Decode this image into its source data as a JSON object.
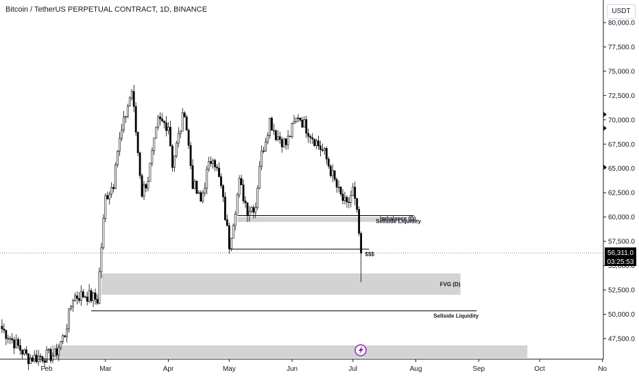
{
  "chart_title": "Bitcoin / TetherUS PERPETUAL CONTRACT, 1D, BINANCE",
  "unit_badge": "USDT",
  "colors": {
    "background": "#ffffff",
    "candle": "#000000",
    "zone": "#d3d3d3",
    "grid_text": "#131722",
    "price_tag": "#000000",
    "price_tag_text": "#ffffff"
  },
  "chart_data": {
    "type": "candlestick",
    "title": "Bitcoin / TetherUS PERPETUAL CONTRACT, 1D, BINANCE",
    "xlabel": "",
    "ylabel": "",
    "ylim": [
      45500,
      81500
    ],
    "y_ticks": [
      {
        "value": 47500,
        "label": "47,500.0"
      },
      {
        "value": 50000,
        "label": "50,000.0"
      },
      {
        "value": 52500,
        "label": "52,500.0"
      },
      {
        "value": 55000,
        "label": "55,000.0"
      },
      {
        "value": 57500,
        "label": "57,500.0"
      },
      {
        "value": 60000,
        "label": "60,000.0"
      },
      {
        "value": 62500,
        "label": "62,500.0"
      },
      {
        "value": 65000,
        "label": "65,000.0"
      },
      {
        "value": 67500,
        "label": "67,500.0"
      },
      {
        "value": 70000,
        "label": "70,000.0"
      },
      {
        "value": 72500,
        "label": "72,500.0"
      },
      {
        "value": 75000,
        "label": "75,000.0"
      },
      {
        "value": 77500,
        "label": "77,500.0"
      },
      {
        "value": 80000,
        "label": "80,000.0"
      }
    ],
    "x_ticks": [
      {
        "date": "2024-02-01",
        "label": "Feb"
      },
      {
        "date": "2024-03-01",
        "label": "Mar"
      },
      {
        "date": "2024-04-01",
        "label": "Apr"
      },
      {
        "date": "2024-05-01",
        "label": "May"
      },
      {
        "date": "2024-06-01",
        "label": "Jun"
      },
      {
        "date": "2024-07-01",
        "label": "Jul"
      },
      {
        "date": "2024-08-01",
        "label": "Aug"
      },
      {
        "date": "2024-09-01",
        "label": "Sep"
      },
      {
        "date": "2024-10-01",
        "label": "Oct"
      },
      {
        "date": "2024-11-01",
        "label": "No"
      }
    ],
    "current_price": {
      "value": 56311.0,
      "label": "56,311.0",
      "countdown": "03:25:53"
    },
    "ohlc_anchors": [
      {
        "date": "2024-01-10",
        "price": 48500
      },
      {
        "date": "2024-01-23",
        "price": 45500
      },
      {
        "date": "2024-02-05",
        "price": 45800
      },
      {
        "date": "2024-02-10",
        "price": 48000
      },
      {
        "date": "2024-02-14",
        "price": 51800
      },
      {
        "date": "2024-02-20",
        "price": 52000
      },
      {
        "date": "2024-02-26",
        "price": 51500
      },
      {
        "date": "2024-02-28",
        "price": 57000
      },
      {
        "date": "2024-03-01",
        "price": 62000
      },
      {
        "date": "2024-03-05",
        "price": 63500
      },
      {
        "date": "2024-03-06",
        "price": 66000
      },
      {
        "date": "2024-03-12",
        "price": 71500
      },
      {
        "date": "2024-03-14",
        "price": 73000
      },
      {
        "date": "2024-03-19",
        "price": 62500
      },
      {
        "date": "2024-03-22",
        "price": 64000
      },
      {
        "date": "2024-03-27",
        "price": 69800
      },
      {
        "date": "2024-04-01",
        "price": 69500
      },
      {
        "date": "2024-04-03",
        "price": 65500
      },
      {
        "date": "2024-04-09",
        "price": 71000
      },
      {
        "date": "2024-04-13",
        "price": 63500
      },
      {
        "date": "2024-04-17",
        "price": 61500
      },
      {
        "date": "2024-04-20",
        "price": 64500
      },
      {
        "date": "2024-04-23",
        "price": 66500
      },
      {
        "date": "2024-04-27",
        "price": 63000
      },
      {
        "date": "2024-05-01",
        "price": 57200
      },
      {
        "date": "2024-05-06",
        "price": 63500
      },
      {
        "date": "2024-05-10",
        "price": 60800
      },
      {
        "date": "2024-05-14",
        "price": 61200
      },
      {
        "date": "2024-05-16",
        "price": 65500
      },
      {
        "date": "2024-05-21",
        "price": 70000
      },
      {
        "date": "2024-05-24",
        "price": 68500
      },
      {
        "date": "2024-05-29",
        "price": 67500
      },
      {
        "date": "2024-06-04",
        "price": 70500
      },
      {
        "date": "2024-06-07",
        "price": 69500
      },
      {
        "date": "2024-06-12",
        "price": 68000
      },
      {
        "date": "2024-06-17",
        "price": 66500
      },
      {
        "date": "2024-06-24",
        "price": 62500
      },
      {
        "date": "2024-06-28",
        "price": 61000
      },
      {
        "date": "2024-07-01",
        "price": 62800
      },
      {
        "date": "2024-07-03",
        "price": 60200
      },
      {
        "date": "2024-07-05",
        "price": 56300
      }
    ],
    "zones": [
      {
        "label": "FVG (D)",
        "start": "2024-02-28",
        "end": "2024-08-23",
        "high": 54200,
        "low": 52000
      },
      {
        "label": "",
        "start": "2024-02-03",
        "end": "2024-09-25",
        "high": 46800,
        "low": 45500
      },
      {
        "label": "Imbalance (D)",
        "start": "2024-05-05",
        "end": "2024-07-31",
        "high": 60000,
        "low": 59500
      }
    ],
    "lines": [
      {
        "label": "Sellside Liquidity",
        "start": "2024-05-05",
        "end": "2024-07-31",
        "price": 60150
      },
      {
        "label": "$$$",
        "start": "2024-05-01",
        "end": "2024-07-09",
        "price": 56700
      },
      {
        "label": "Sellside Liquidity",
        "start": "2024-02-23",
        "end": "2024-08-31",
        "price": 50350
      }
    ]
  }
}
